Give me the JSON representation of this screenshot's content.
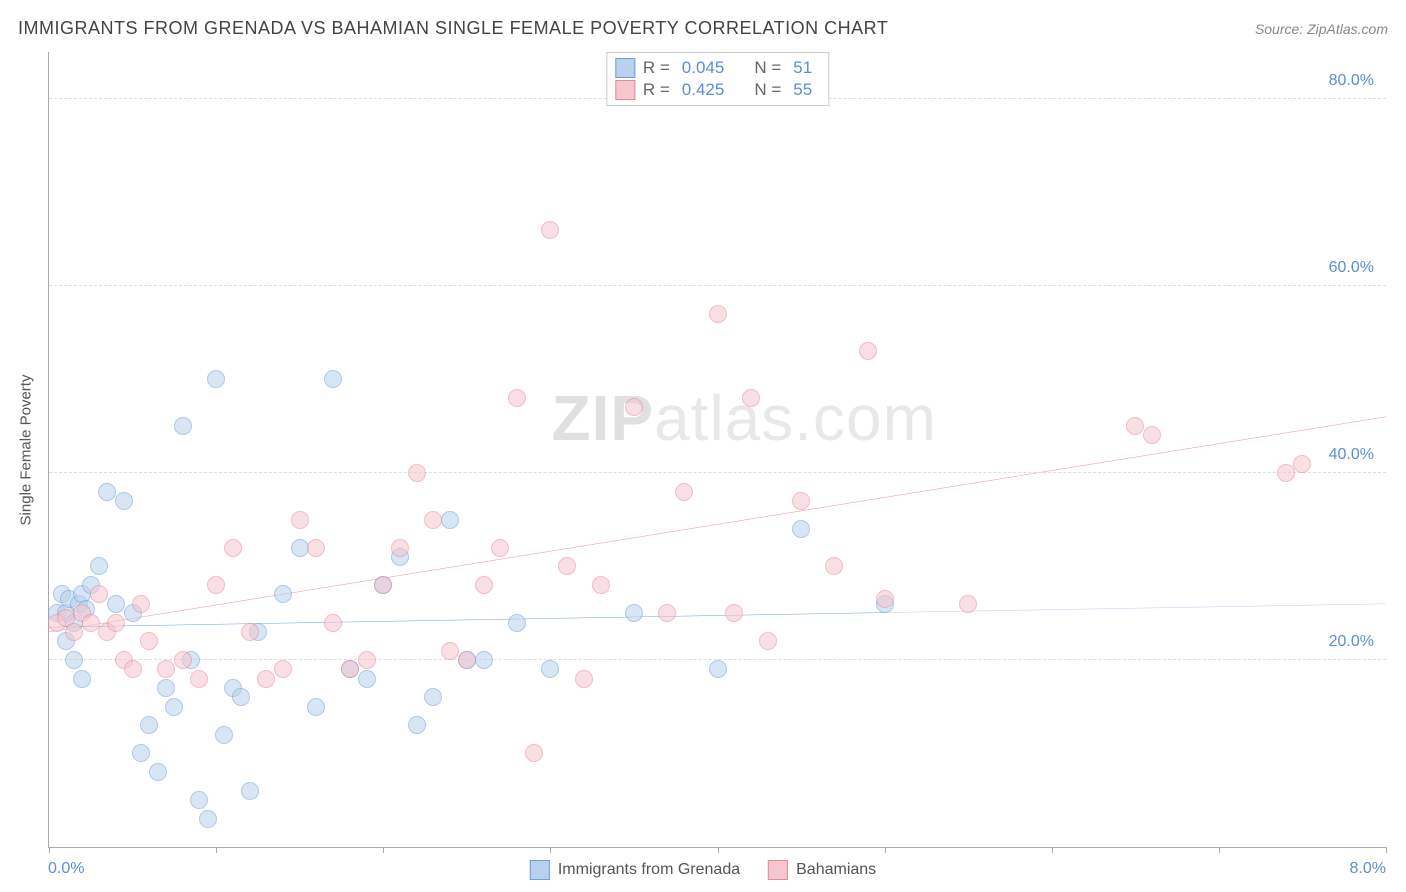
{
  "header": {
    "title": "IMMIGRANTS FROM GRENADA VS BAHAMIAN SINGLE FEMALE POVERTY CORRELATION CHART",
    "source_prefix": "Source: ",
    "source_name": "ZipAtlas.com"
  },
  "watermark": {
    "zip": "ZIP",
    "atlas": "atlas",
    "suffix": ".com"
  },
  "chart": {
    "type": "scatter",
    "y_axis_label": "Single Female Poverty",
    "xlim": [
      0,
      8
    ],
    "ylim": [
      0,
      85
    ],
    "x_ticks": [
      0,
      1,
      2,
      3,
      4,
      5,
      6,
      7,
      8
    ],
    "x_tick_labels": {
      "0": "0.0%",
      "8": "8.0%"
    },
    "y_ticks": [
      20,
      40,
      60,
      80
    ],
    "y_tick_labels": {
      "20": "20.0%",
      "40": "40.0%",
      "60": "60.0%",
      "80": "80.0%"
    },
    "grid_color": "#dddddd",
    "axis_color": "#aaaaaa",
    "tick_label_color": "#5b8fd6",
    "background": "#ffffff",
    "point_radius": 9,
    "point_opacity": 0.55,
    "series": [
      {
        "name": "Immigrants from Grenada",
        "fill": "#b9d1ee",
        "stroke": "#6a9fd8",
        "trend_stroke": "#3a7bd0",
        "r_value": "0.045",
        "n_value": "51",
        "trend": {
          "y_at_xmin": 23.5,
          "y_at_xmax": 26.0,
          "solid_until_x": 5.0
        },
        "points": [
          [
            0.05,
            25
          ],
          [
            0.08,
            27
          ],
          [
            0.1,
            25
          ],
          [
            0.12,
            26.5
          ],
          [
            0.15,
            24
          ],
          [
            0.18,
            26
          ],
          [
            0.2,
            27
          ],
          [
            0.22,
            25.5
          ],
          [
            0.1,
            22
          ],
          [
            0.15,
            20
          ],
          [
            0.2,
            18
          ],
          [
            0.25,
            28
          ],
          [
            0.3,
            30
          ],
          [
            0.35,
            38
          ],
          [
            0.4,
            26
          ],
          [
            0.45,
            37
          ],
          [
            0.5,
            25
          ],
          [
            0.55,
            10
          ],
          [
            0.6,
            13
          ],
          [
            0.65,
            8
          ],
          [
            0.7,
            17
          ],
          [
            0.75,
            15
          ],
          [
            0.8,
            45
          ],
          [
            0.85,
            20
          ],
          [
            0.9,
            5
          ],
          [
            0.95,
            3
          ],
          [
            1.0,
            50
          ],
          [
            1.05,
            12
          ],
          [
            1.1,
            17
          ],
          [
            1.15,
            16
          ],
          [
            1.2,
            6
          ],
          [
            1.25,
            23
          ],
          [
            1.4,
            27
          ],
          [
            1.5,
            32
          ],
          [
            1.6,
            15
          ],
          [
            1.7,
            50
          ],
          [
            1.8,
            19
          ],
          [
            1.9,
            18
          ],
          [
            2.0,
            28
          ],
          [
            2.1,
            31
          ],
          [
            2.2,
            13
          ],
          [
            2.3,
            16
          ],
          [
            2.4,
            35
          ],
          [
            2.5,
            20
          ],
          [
            2.6,
            20
          ],
          [
            2.8,
            24
          ],
          [
            3.0,
            19
          ],
          [
            3.5,
            25
          ],
          [
            4.0,
            19
          ],
          [
            4.5,
            34
          ],
          [
            5.0,
            26
          ]
        ]
      },
      {
        "name": "Bahamians",
        "fill": "#f5c6ce",
        "stroke": "#e38a99",
        "trend_stroke": "#e0607f",
        "r_value": "0.425",
        "n_value": "55",
        "trend": {
          "y_at_xmin": 23.0,
          "y_at_xmax": 46.0,
          "solid_until_x": 8.0
        },
        "points": [
          [
            0.05,
            24
          ],
          [
            0.1,
            24.5
          ],
          [
            0.15,
            23
          ],
          [
            0.2,
            25
          ],
          [
            0.25,
            24
          ],
          [
            0.3,
            27
          ],
          [
            0.35,
            23
          ],
          [
            0.4,
            24
          ],
          [
            0.45,
            20
          ],
          [
            0.5,
            19
          ],
          [
            0.55,
            26
          ],
          [
            0.6,
            22
          ],
          [
            0.7,
            19
          ],
          [
            0.8,
            20
          ],
          [
            0.9,
            18
          ],
          [
            1.0,
            28
          ],
          [
            1.1,
            32
          ],
          [
            1.2,
            23
          ],
          [
            1.3,
            18
          ],
          [
            1.4,
            19
          ],
          [
            1.5,
            35
          ],
          [
            1.6,
            32
          ],
          [
            1.7,
            24
          ],
          [
            1.8,
            19
          ],
          [
            1.9,
            20
          ],
          [
            2.0,
            28
          ],
          [
            2.1,
            32
          ],
          [
            2.2,
            40
          ],
          [
            2.3,
            35
          ],
          [
            2.4,
            21
          ],
          [
            2.5,
            20
          ],
          [
            2.6,
            28
          ],
          [
            2.7,
            32
          ],
          [
            2.8,
            48
          ],
          [
            2.9,
            10
          ],
          [
            3.0,
            66
          ],
          [
            3.1,
            30
          ],
          [
            3.2,
            18
          ],
          [
            3.3,
            28
          ],
          [
            3.5,
            47
          ],
          [
            3.7,
            25
          ],
          [
            3.8,
            38
          ],
          [
            4.0,
            57
          ],
          [
            4.1,
            25
          ],
          [
            4.2,
            48
          ],
          [
            4.3,
            22
          ],
          [
            4.5,
            37
          ],
          [
            4.7,
            30
          ],
          [
            4.9,
            53
          ],
          [
            5.0,
            26.5
          ],
          [
            5.5,
            26
          ],
          [
            6.5,
            45
          ],
          [
            6.6,
            44
          ],
          [
            7.4,
            40
          ],
          [
            7.5,
            41
          ]
        ]
      }
    ]
  },
  "bottom_legend": {
    "items": [
      {
        "label": "Immigrants from Grenada",
        "fill": "#b9d1ee",
        "stroke": "#6a9fd8"
      },
      {
        "label": "Bahamians",
        "fill": "#f5c6ce",
        "stroke": "#e38a99"
      }
    ]
  }
}
